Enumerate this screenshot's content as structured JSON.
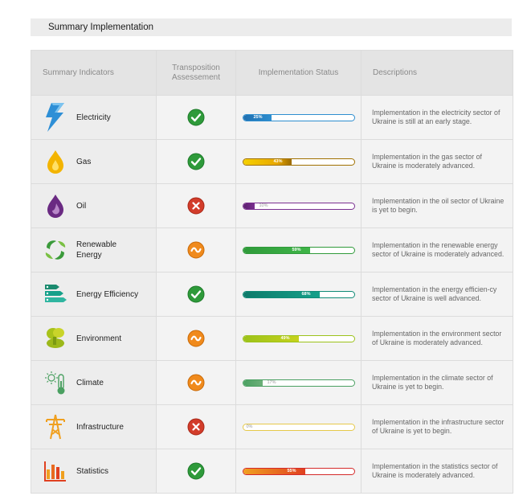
{
  "title": "Summary Implementation",
  "headers": {
    "indicators": "Summary Indicators",
    "transposition_line1": "Transposition",
    "transposition_line2": "Assessement",
    "status": "Implementation Status",
    "descriptions": "Descriptions"
  },
  "colors": {
    "check_green": "#2e9a3a",
    "cross_red": "#d23c2a",
    "partial_orange": "#f08a1c"
  },
  "rows": [
    {
      "label": "Electricity",
      "icon": "lightning-icon",
      "assessment": "check",
      "percent": 25,
      "percent_label": "25%",
      "fill": "linear-gradient(90deg,#1f6fb0,#2e8ecf)",
      "border": "#2e8ecf",
      "description": "Implementation in the electricity sector of Ukraine is still at an early stage."
    },
    {
      "label": "Gas",
      "icon": "flame-drop-icon",
      "assessment": "check",
      "percent": 43,
      "percent_label": "43%",
      "fill": "linear-gradient(90deg,#f5d000,#e8a800 70%,#9b6a00)",
      "border": "#a07000",
      "description": "Implementation in the gas sector of Ukraine is moderately advanced."
    },
    {
      "label": "Oil",
      "icon": "oil-drop-icon",
      "assessment": "cross",
      "percent": 10,
      "percent_label": "10%",
      "fill": "linear-gradient(90deg,#5a1f6e,#7a2f90)",
      "border": "#7a2f90",
      "description": "Implementation in the oil sector of Ukraine is yet to begin."
    },
    {
      "label": "Renewable Energy",
      "icon": "leaves-cycle-icon",
      "assessment": "partial",
      "percent": 59,
      "percent_label": "59%",
      "fill": "linear-gradient(90deg,#2f9a3a,#3fb548)",
      "border": "#2f9a3a",
      "description": "Implementation in the renewable energy sector of Ukraine is moderately advanced."
    },
    {
      "label": "Energy Efficiency",
      "icon": "efficiency-bars-icon",
      "assessment": "check",
      "percent": 68,
      "percent_label": "68%",
      "fill": "linear-gradient(90deg,#0e7a6a,#16a08a)",
      "border": "#0e8a76",
      "description": "Implementation in the energy efficien-cy sector of Ukraine is well advanced."
    },
    {
      "label": "Environment",
      "icon": "tree-icon",
      "assessment": "partial",
      "percent": 49,
      "percent_label": "49%",
      "fill": "linear-gradient(90deg,#9cc21a,#c6d21c)",
      "border": "#9cc21a",
      "description": "Implementation in the environment sector of Ukraine is moderately advanced."
    },
    {
      "label": "Climate",
      "icon": "thermometer-sun-icon",
      "assessment": "partial",
      "percent": 17,
      "percent_label": "17%",
      "fill": "linear-gradient(90deg,#4aa061,#6db07a)",
      "border": "#4aa061",
      "description": "Implementation in the climate sector of Ukraine is yet to begin."
    },
    {
      "label": "Infrastructure",
      "icon": "pylon-icon",
      "assessment": "cross",
      "percent": 0,
      "percent_label": "0%",
      "fill": "linear-gradient(90deg,#e8c94a,#e8c94a)",
      "border": "#e6c94a",
      "description": "Implementation in the infrastructure sector of Ukraine is yet to begin."
    },
    {
      "label": "Statistics",
      "icon": "bar-chart-icon",
      "assessment": "check",
      "percent": 55,
      "percent_label": "55%",
      "fill": "linear-gradient(90deg,#f0a020,#e04020)",
      "border": "#d42a2a",
      "description": "Implementation in the statistics sector of Ukraine is moderately advanced."
    }
  ]
}
